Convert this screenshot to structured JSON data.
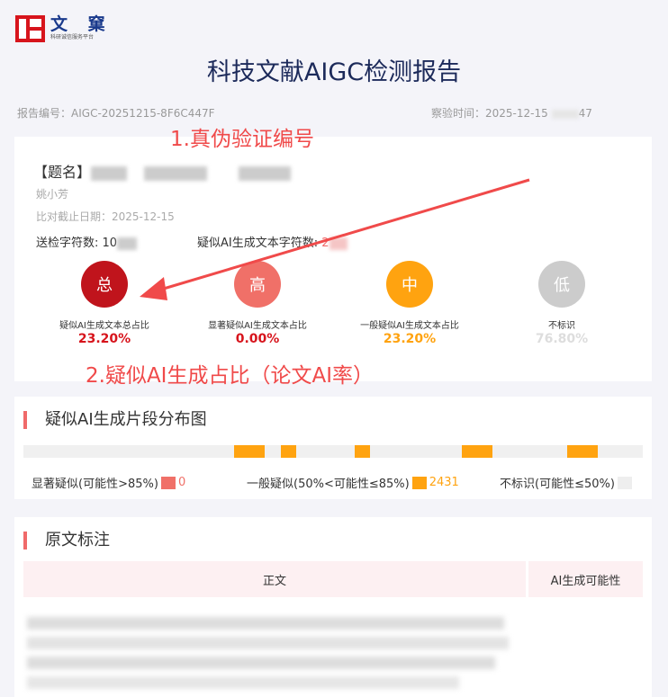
{
  "logo": {
    "text": "文 窠",
    "subtitle": "科研诚信服务平台"
  },
  "title": "科技文献AIGC检测报告",
  "meta": {
    "report_no_label": "报告编号：",
    "report_no": "AIGC-20251215-8F6C447F",
    "time_label": "察验时间：",
    "time_prefix": "2025-12-15",
    "time_suffix": "47"
  },
  "annotations": {
    "one": "1.真伪验证编号",
    "two": "2.疑似AI生成占比（论文AI率）"
  },
  "summary": {
    "title_label": "【题名】",
    "author": "姚小芳",
    "date_label": "比对截止日期：",
    "date": "2025-12-15",
    "chars_label": "送检字符数:",
    "chars_prefix": "10",
    "ai_chars_label": "疑似AI生成文本字符数:",
    "ai_chars_prefix": "2"
  },
  "stats": [
    {
      "glyph": "总",
      "label": "疑似AI生成文本总占比",
      "value": "23.20%",
      "color": "#c0141c",
      "text_color": "#d7141c"
    },
    {
      "glyph": "高",
      "label": "显著疑似AI生成文本占比",
      "value": "0.00%",
      "color": "#f07068",
      "text_color": "#d7141c"
    },
    {
      "glyph": "中",
      "label": "一般疑似AI生成文本占比",
      "value": "23.20%",
      "color": "#ffa310",
      "text_color": "#ffa310"
    },
    {
      "glyph": "低",
      "label": "不标识",
      "value": "76.80%",
      "color": "#cccccc",
      "text_color": "#dddddd"
    }
  ],
  "distribution": {
    "title": "疑似AI生成片段分布图",
    "segments": [
      {
        "start": 0.34,
        "end": 0.39
      },
      {
        "start": 0.415,
        "end": 0.44
      },
      {
        "start": 0.535,
        "end": 0.56
      },
      {
        "start": 0.708,
        "end": 0.757
      },
      {
        "start": 0.878,
        "end": 0.928
      }
    ],
    "legend": [
      {
        "label": "显著疑似(可能性>85%)",
        "value": "0",
        "color": "#f07068"
      },
      {
        "label": "一般疑似(50%<可能性≤85%)",
        "value": "2431",
        "color": "#ffa310"
      },
      {
        "label": "不标识(可能性≤50%)",
        "value": "",
        "color": "#eeeeee"
      }
    ]
  },
  "original": {
    "title": "原文标注",
    "col_text": "正文",
    "col_ai": "AI生成可能性"
  }
}
